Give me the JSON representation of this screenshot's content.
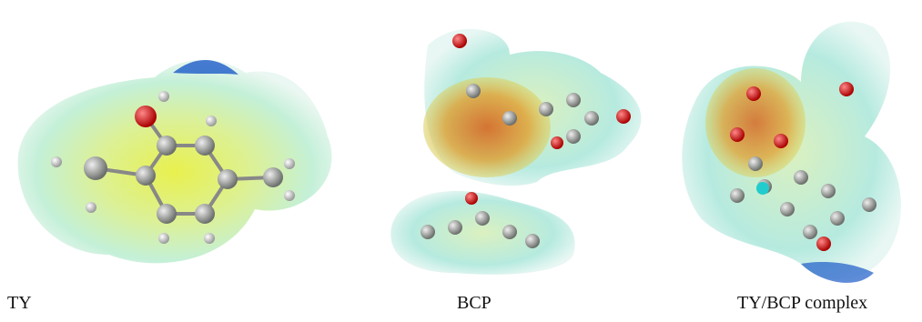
{
  "panels": [
    {
      "label": "TY"
    },
    {
      "label": "BCP"
    },
    {
      "label": "TY/BCP complex"
    }
  ]
}
